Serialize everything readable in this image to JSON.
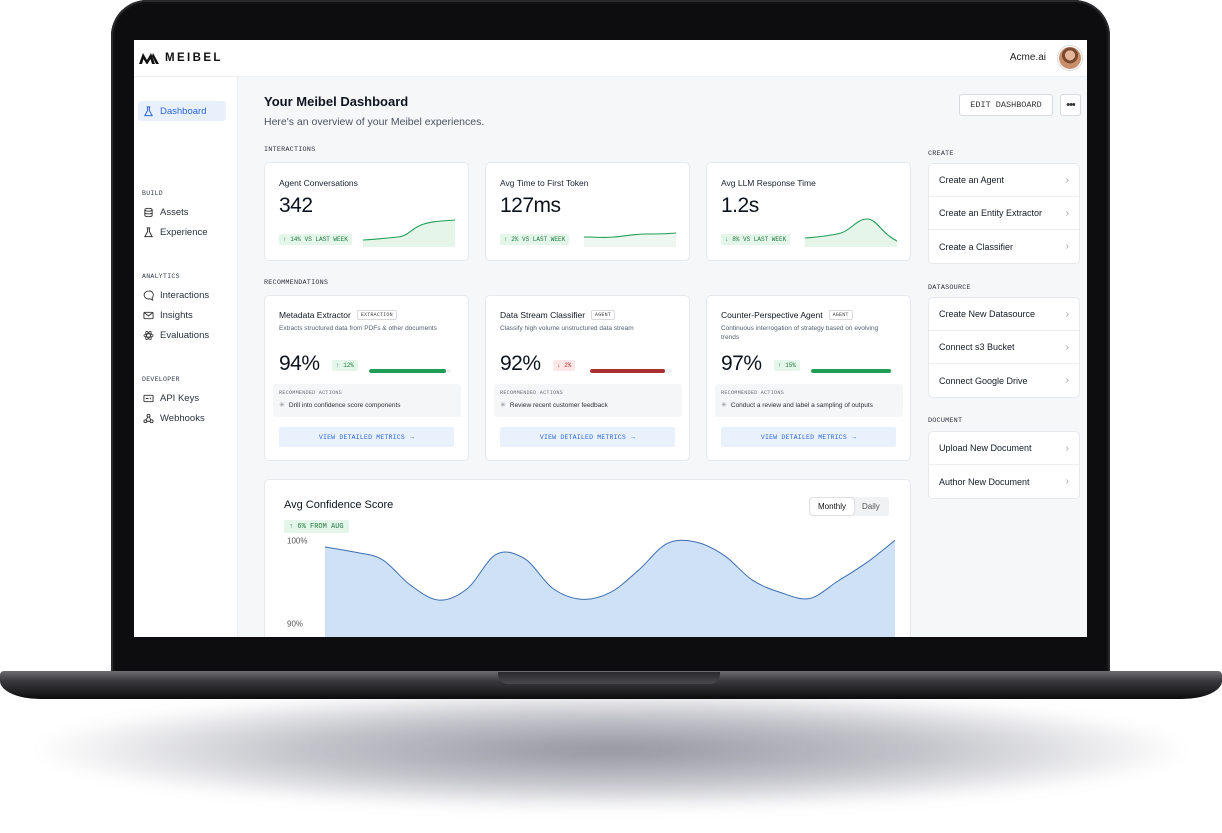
{
  "brand": {
    "name": "MEIBEL"
  },
  "account": {
    "org": "Acme.ai"
  },
  "sidebar": {
    "dashboard": "Dashboard",
    "sections": [
      {
        "label": "BUILD",
        "items": [
          "Assets",
          "Experience"
        ]
      },
      {
        "label": "ANALYTICS",
        "items": [
          "Interactions",
          "Insights",
          "Evaluations"
        ]
      },
      {
        "label": "DEVELOPER",
        "items": [
          "API Keys",
          "Webhooks"
        ]
      }
    ]
  },
  "header": {
    "title": "Your Meibel Dashboard",
    "subtitle": "Here's an overview of your Meibel experiences.",
    "edit_label": "EDIT DASHBOARD",
    "more_label": "•••"
  },
  "interactions": {
    "label": "INTERACTIONS",
    "cards": [
      {
        "title": "Agent Conversations",
        "value": "342",
        "badge": "↑ 14% VS LAST WEEK"
      },
      {
        "title": "Avg Time to First Token",
        "value": "127ms",
        "badge": "↑ 2% VS LAST WEEK"
      },
      {
        "title": "Avg LLM Response Time",
        "value": "1.2s",
        "badge": "↓ 8% VS LAST WEEK"
      }
    ]
  },
  "recommendations": {
    "label": "RECOMMENDATIONS",
    "actions_label": "RECOMMENDED ACTIONS",
    "link_label": "VIEW DETAILED METRICS",
    "cards": [
      {
        "title": "Metadata Extractor",
        "tag": "EXTRACTION",
        "desc": "Extracts structured data from PDFs & other documents",
        "pct": "94%",
        "delta": "↑ 12%",
        "progress": 0.94,
        "action": "Drill into confidence score components"
      },
      {
        "title": "Data Stream Classifier",
        "tag": "AGENT",
        "desc": "Classify high volume unstructured data stream",
        "pct": "92%",
        "delta": "↓ 2%",
        "progress": 0.92,
        "action": "Review recent customer feedback"
      },
      {
        "title": "Counter-Perspective Agent",
        "tag": "AGENT",
        "desc": "Continuous interrogation of strategy based on evolving trends",
        "pct": "97%",
        "delta": "↑ 15%",
        "progress": 0.97,
        "action": "Conduct a review and label a sampling of outputs"
      }
    ]
  },
  "confidence": {
    "title": "Avg Confidence Score",
    "badge": "↑ 6% FROM AUG",
    "toggle": [
      "Monthly",
      "Daily"
    ]
  },
  "chart_data": {
    "type": "area",
    "title": "Avg Confidence Score",
    "y_ticks": [
      "100%",
      "90%"
    ],
    "ylim": [
      88,
      101
    ],
    "values": [
      99.2,
      98.6,
      97.7,
      94.6,
      92.8,
      94.2,
      98.3,
      97.8,
      94.2,
      92.9,
      93.7,
      96.4,
      99.6,
      99.8,
      98.2,
      95.2,
      93.7,
      93.0,
      95.1,
      97.3,
      100.0
    ],
    "grid": false,
    "legend": "none"
  },
  "right_panel": {
    "groups": [
      {
        "label": "CREATE",
        "items": [
          "Create an Agent",
          "Create an Entity Extractor",
          "Create a Classifier"
        ]
      },
      {
        "label": "DATASOURCE",
        "items": [
          "Create New Datasource",
          "Connect s3 Bucket",
          "Connect Google Drive"
        ]
      },
      {
        "label": "DOCUMENT",
        "items": [
          "Upload New Document",
          "Author New Document"
        ]
      }
    ]
  },
  "colors": {
    "accent": "#2a66d6",
    "positive": "#1f9d55",
    "negative": "#a82f33",
    "chart_fill": "#cfe1f7",
    "chart_line": "#3d6fb0"
  }
}
